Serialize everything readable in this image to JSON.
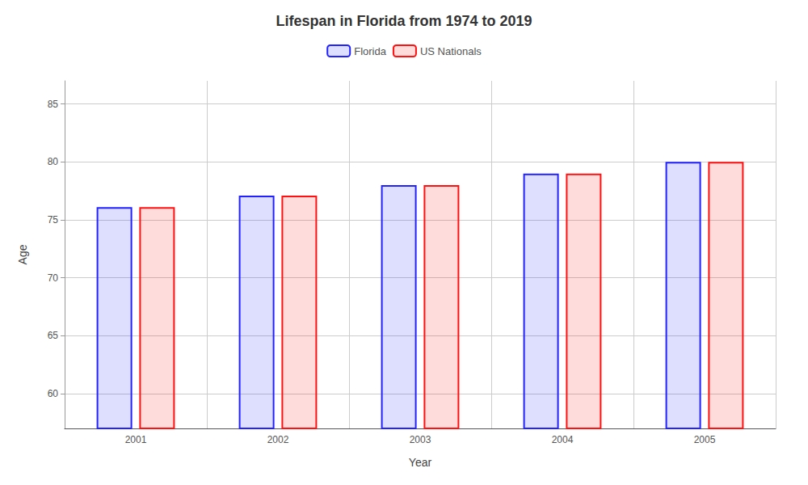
{
  "chart_data": {
    "type": "bar",
    "title": "Lifespan in Florida from 1974 to 2019",
    "xlabel": "Year",
    "ylabel": "Age",
    "categories": [
      "2001",
      "2002",
      "2003",
      "2004",
      "2005"
    ],
    "series": [
      {
        "name": "Florida",
        "color": "#2222ff",
        "values": [
          76.1,
          77.1,
          78.0,
          79.0,
          80.0
        ]
      },
      {
        "name": "US Nationals",
        "color": "#ff1111",
        "values": [
          76.1,
          77.1,
          78.0,
          79.0,
          80.0
        ]
      }
    ],
    "ylim": [
      57,
      87
    ],
    "yticks": [
      60,
      65,
      70,
      75,
      80,
      85
    ],
    "grid": true,
    "legend": "top"
  }
}
